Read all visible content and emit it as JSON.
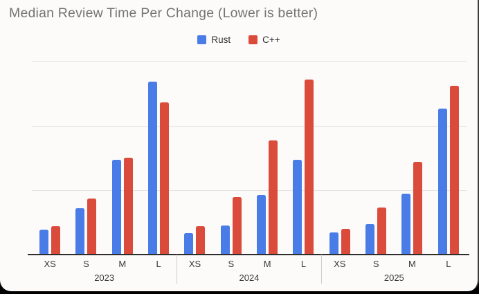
{
  "title": "Median Review Time Per Change (Lower is better)",
  "legend": {
    "items": [
      {
        "label": "Rust",
        "color": "#4A7CE8"
      },
      {
        "label": "C++",
        "color": "#DB4B3C"
      }
    ]
  },
  "chart_data": {
    "type": "bar",
    "title": "Median Review Time Per Change (Lower is better)",
    "categories": [
      "XS",
      "S",
      "M",
      "L"
    ],
    "groups": [
      "2023",
      "2024",
      "2025"
    ],
    "series": [
      {
        "name": "Rust",
        "color": "#4A7CE8",
        "values": {
          "2023": [
            7.7,
            14.4,
            29.3,
            53.6
          ],
          "2024": [
            6.6,
            9.0,
            18.4,
            29.3
          ],
          "2025": [
            6.8,
            9.4,
            18.9,
            45.2
          ]
        }
      },
      {
        "name": "C++",
        "color": "#DB4B3C",
        "values": {
          "2023": [
            8.9,
            17.3,
            30.0,
            47.3
          ],
          "2024": [
            8.9,
            17.8,
            35.4,
            54.3
          ],
          "2025": [
            7.9,
            14.6,
            28.7,
            52.4
          ]
        }
      }
    ],
    "ylim": [
      0,
      60.7
    ],
    "gridline_values": [
      20,
      40,
      60
    ],
    "y_axis_labels_visible": false,
    "legend_position": "top",
    "colors": {
      "background": "#fdfbfa",
      "gridline": "#e3e0e0",
      "axis": "#2e2e2e",
      "title_text": "#747474",
      "label_text": "#383838"
    }
  }
}
